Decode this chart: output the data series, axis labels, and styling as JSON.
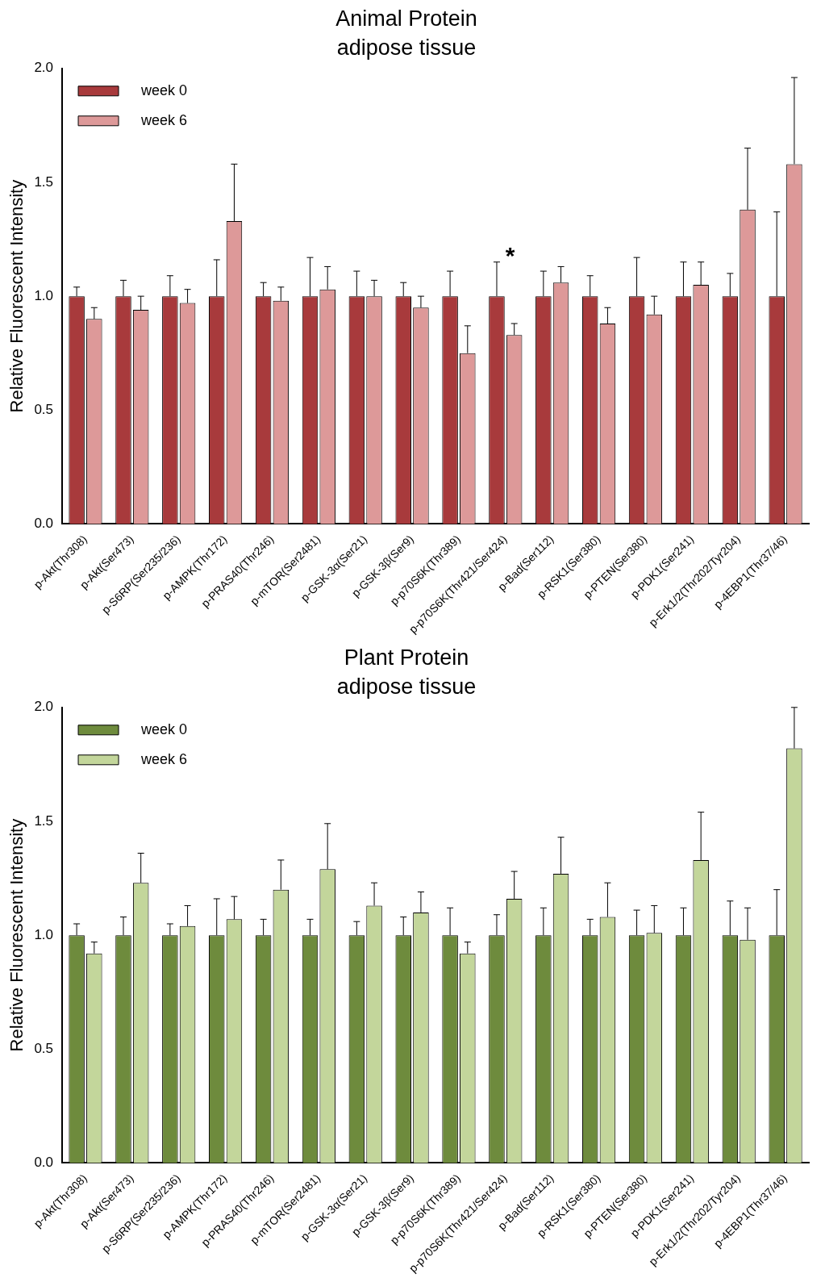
{
  "chart_data": [
    {
      "type": "bar",
      "title": "Animal Protein",
      "subtitle": "adipose tissue",
      "ylabel": "Relative Fluorescent Intensity",
      "categories": [
        "p-Akt(Thr308)",
        "p-Akt(Ser473)",
        "p-S6RP(Ser235/236)",
        "p-AMPK(Thr172)",
        "p-PRAS40(Thr246)",
        "p-mTOR(Ser2481)",
        "p-GSK-3α(Ser21)",
        "p-GSK-3β(Ser9)",
        "p-p70S6K(Thr389)",
        "p-p70S6K(Thr421/Ser424)",
        "p-Bad(Ser112)",
        "p-RSK1(Ser380)",
        "p-PTEN(Ser380)",
        "p-PDK1(Ser241)",
        "p-Erk1/2(Thr202/Tyr204)",
        "p-4EBP1(Thr37/46)"
      ],
      "series": [
        {
          "name": "week 0",
          "color": "#a83a3c",
          "values": [
            1,
            1,
            1,
            1,
            1,
            1,
            1,
            1,
            1,
            1,
            1,
            1,
            1,
            1,
            1,
            1
          ],
          "errors": [
            [
              1,
              1.04
            ],
            [
              1,
              1.07
            ],
            [
              1,
              1.09
            ],
            [
              1,
              1.16
            ],
            [
              1,
              1.06
            ],
            [
              1,
              1.17
            ],
            [
              1,
              1.11
            ],
            [
              1,
              1.06
            ],
            [
              1,
              1.11
            ],
            [
              1,
              1.15
            ],
            [
              1,
              1.11
            ],
            [
              1,
              1.09
            ],
            [
              1,
              1.17
            ],
            [
              1,
              1.15
            ],
            [
              1,
              1.1
            ],
            [
              1,
              1.37
            ]
          ]
        },
        {
          "name": "week 6",
          "color": "#dd9999",
          "values": [
            0.9,
            0.94,
            0.97,
            1.33,
            0.98,
            1.03,
            1.0,
            0.95,
            0.75,
            0.83,
            1.06,
            0.88,
            0.92,
            1.05,
            1.38,
            1.58
          ],
          "errors": [
            [
              0.9,
              0.95
            ],
            [
              0.94,
              1.0
            ],
            [
              0.97,
              1.03
            ],
            [
              1.33,
              1.58
            ],
            [
              0.98,
              1.04
            ],
            [
              1.03,
              1.13
            ],
            [
              1.0,
              1.07
            ],
            [
              0.95,
              1.0
            ],
            [
              0.75,
              0.87
            ],
            [
              0.83,
              0.88
            ],
            [
              1.06,
              1.13
            ],
            [
              0.88,
              0.95
            ],
            [
              0.92,
              1.0
            ],
            [
              1.05,
              1.15
            ],
            [
              1.38,
              1.65
            ],
            [
              1.58,
              1.96
            ]
          ]
        }
      ],
      "ylim": [
        0,
        2
      ],
      "yticks": [
        {
          "value": 0,
          "label": "0.0"
        },
        {
          "value": 0.5,
          "label": "0.5"
        },
        {
          "value": 1,
          "label": "1.0"
        },
        {
          "value": 1.5,
          "label": "1.5"
        },
        {
          "value": 2,
          "label": "2.0"
        }
      ],
      "grid": false,
      "legend": "top left",
      "annotations": [
        "*"
      ]
    },
    {
      "type": "bar",
      "title": "Plant Protein",
      "subtitle": "adipose tissue",
      "ylabel": "Relative Fluorescent Intensity",
      "categories": [
        "p-Akt(Thr308)",
        "p-Akt(Ser473)",
        "p-S6RP(Ser235/236)",
        "p-AMPK(Thr172)",
        "p-PRAS40(Thr246)",
        "p-mTOR(Ser2481)",
        "p-GSK-3α(Ser21)",
        "p-GSK-3β(Ser9)",
        "p-p70S6K(Thr389)",
        "p-p70S6K(Thr421/Ser424)",
        "p-Bad(Ser112)",
        "p-RSK1(Ser380)",
        "p-PTEN(Ser380)",
        "p-PDK1(Ser241)",
        "p-Erk1/2(Thr202/Tyr204)",
        "p-4EBP1(Thr37/46)"
      ],
      "series": [
        {
          "name": "week 0",
          "color": "#6e8b3d",
          "values": [
            1,
            1,
            1,
            1,
            1,
            1,
            1,
            1,
            1,
            1,
            1,
            1,
            1,
            1,
            1,
            1
          ],
          "errors": [
            [
              1,
              1.05
            ],
            [
              1,
              1.08
            ],
            [
              1,
              1.05
            ],
            [
              1,
              1.16
            ],
            [
              1,
              1.07
            ],
            [
              1,
              1.07
            ],
            [
              1,
              1.06
            ],
            [
              1,
              1.08
            ],
            [
              1,
              1.12
            ],
            [
              1,
              1.09
            ],
            [
              1,
              1.12
            ],
            [
              1,
              1.07
            ],
            [
              1,
              1.11
            ],
            [
              1,
              1.12
            ],
            [
              1,
              1.15
            ],
            [
              1,
              1.2
            ]
          ]
        },
        {
          "name": "week 6",
          "color": "#c3d69b",
          "values": [
            0.92,
            1.23,
            1.04,
            1.07,
            1.2,
            1.29,
            1.13,
            1.1,
            0.92,
            1.16,
            1.27,
            1.08,
            1.01,
            1.33,
            0.98,
            1.82
          ],
          "errors": [
            [
              0.92,
              0.97
            ],
            [
              1.23,
              1.36
            ],
            [
              1.04,
              1.13
            ],
            [
              1.07,
              1.17
            ],
            [
              1.2,
              1.33
            ],
            [
              1.29,
              1.49
            ],
            [
              1.13,
              1.23
            ],
            [
              1.1,
              1.19
            ],
            [
              0.92,
              0.97
            ],
            [
              1.16,
              1.28
            ],
            [
              1.27,
              1.43
            ],
            [
              1.08,
              1.23
            ],
            [
              1.01,
              1.13
            ],
            [
              1.33,
              1.54
            ],
            [
              0.98,
              1.12
            ],
            [
              1.82,
              2.0
            ]
          ]
        }
      ],
      "ylim": [
        0,
        2
      ],
      "yticks": [
        {
          "value": 0,
          "label": "0.0"
        },
        {
          "value": 0.5,
          "label": "0.5"
        },
        {
          "value": 1,
          "label": "1.0"
        },
        {
          "value": 1.5,
          "label": "1.5"
        },
        {
          "value": 2,
          "label": "2.0"
        }
      ],
      "grid": false,
      "legend": "top left"
    }
  ]
}
